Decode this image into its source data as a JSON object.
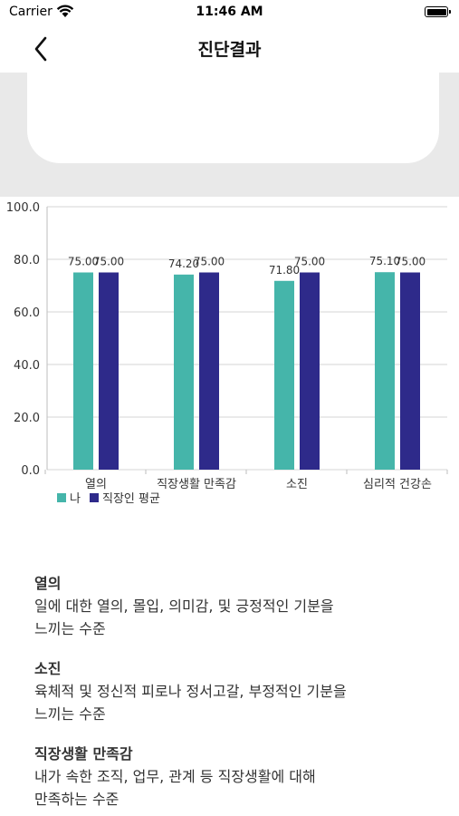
{
  "status_bar": {
    "carrier": "Carrier",
    "time": "11:46 AM"
  },
  "nav": {
    "title": "진단결과"
  },
  "chart_data": {
    "type": "bar",
    "categories": [
      "열의",
      "직장생활 만족감",
      "소진",
      "심리적 건강손"
    ],
    "series": [
      {
        "name": "나",
        "color": "#45b5aa",
        "values": [
          75.0,
          74.2,
          71.8,
          75.1
        ],
        "labels": [
          "75.00",
          "74.20",
          "71.80",
          "75.10"
        ]
      },
      {
        "name": "직장인 평균",
        "color": "#2e2a8a",
        "values": [
          75.0,
          75.0,
          75.0,
          75.0
        ],
        "labels": [
          "75.00",
          "75.00",
          "75.00",
          "75.00"
        ]
      }
    ],
    "yticks": [
      "0.0",
      "20.0",
      "40.0",
      "60.0",
      "80.0",
      "100.0"
    ],
    "ylim": [
      0,
      100
    ],
    "grid": true,
    "legend": "bottom-left"
  },
  "descriptions": [
    {
      "title": "열의",
      "body": "일에 대한 열의, 몰입, 의미감, 및 긍정적인 기분을\n느끼는 수준"
    },
    {
      "title": "소진",
      "body": "육체적 및 정신적 피로나 정서고갈, 부정적인 기분을\n느끼는 수준"
    },
    {
      "title": "직장생활 만족감",
      "body": "내가 속한 조직, 업무, 관계 등 직장생활에 대해\n만족하는 수준"
    }
  ]
}
